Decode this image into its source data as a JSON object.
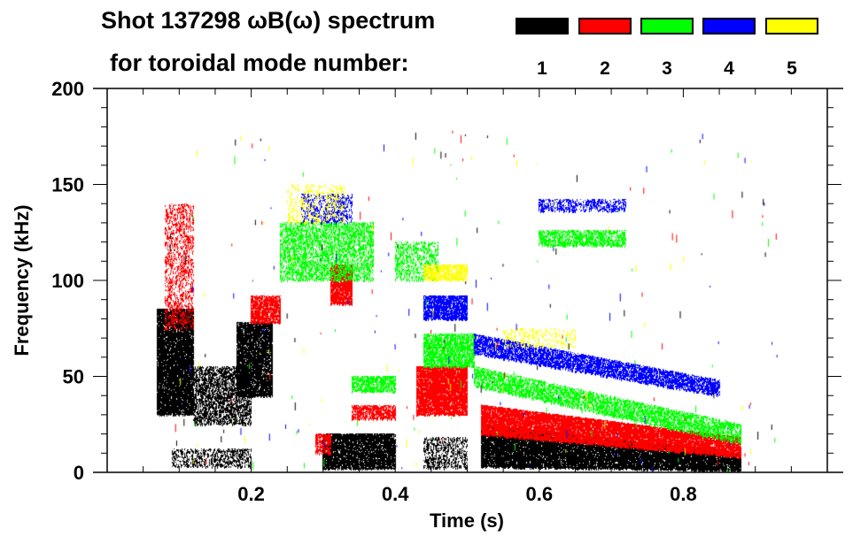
{
  "header": {
    "title_line1": "Shot 137298 ωB(ω) spectrum",
    "title_line2": "for toroidal mode number:"
  },
  "legend": [
    {
      "label": "1",
      "color": "#000000"
    },
    {
      "label": "2",
      "color": "#ff0000"
    },
    {
      "label": "3",
      "color": "#00ff00"
    },
    {
      "label": "4",
      "color": "#0000ff"
    },
    {
      "label": "5",
      "color": "#ffff00"
    }
  ],
  "chart_data": {
    "type": "heatmap",
    "title": "Shot 137298 ωB(ω) spectrum for toroidal mode number:",
    "xlabel": "Time (s)",
    "ylabel": "Frequency (kHz)",
    "xlim": [
      0.0,
      1.0
    ],
    "ylim": [
      0,
      200
    ],
    "xticks": [
      0.2,
      0.4,
      0.6,
      0.8
    ],
    "xtick_labels": [
      "0.2",
      "0.4",
      "0.6",
      "0.8"
    ],
    "yticks": [
      0,
      50,
      100,
      150,
      200
    ],
    "ytick_labels": [
      "0",
      "50",
      "100",
      "150",
      "200"
    ],
    "grid": false,
    "legend_position": "top-right",
    "features": [
      {
        "mode": 1,
        "t": [
          0.07,
          0.12
        ],
        "f": [
          30,
          85
        ],
        "density": 0.85
      },
      {
        "mode": 1,
        "t": [
          0.12,
          0.2
        ],
        "f": [
          25,
          55
        ],
        "density": 0.45
      },
      {
        "mode": 1,
        "t": [
          0.18,
          0.23
        ],
        "f": [
          40,
          78
        ],
        "density": 0.8
      },
      {
        "mode": 1,
        "t": [
          0.09,
          0.2
        ],
        "f": [
          3,
          12
        ],
        "density": 0.3
      },
      {
        "mode": 1,
        "t": [
          0.3,
          0.4
        ],
        "f": [
          2,
          20
        ],
        "density": 0.8
      },
      {
        "mode": 1,
        "t": [
          0.52,
          0.88
        ],
        "f": [
          3,
          25
        ],
        "f_end": [
          1,
          10
        ],
        "density": 0.85
      },
      {
        "mode": 1,
        "t": [
          0.44,
          0.5
        ],
        "f": [
          2,
          18
        ],
        "density": 0.3
      },
      {
        "mode": 2,
        "t": [
          0.08,
          0.12
        ],
        "f": [
          75,
          140
        ],
        "density": 0.25
      },
      {
        "mode": 2,
        "t": [
          0.2,
          0.24
        ],
        "f": [
          78,
          92
        ],
        "density": 0.7
      },
      {
        "mode": 2,
        "t": [
          0.31,
          0.34
        ],
        "f": [
          88,
          108
        ],
        "density": 0.8
      },
      {
        "mode": 2,
        "t": [
          0.43,
          0.5
        ],
        "f": [
          30,
          55
        ],
        "density": 0.85
      },
      {
        "mode": 2,
        "t": [
          0.34,
          0.4
        ],
        "f": [
          28,
          35
        ],
        "density": 0.6
      },
      {
        "mode": 2,
        "t": [
          0.52,
          0.88
        ],
        "f": [
          20,
          35
        ],
        "f_end": [
          8,
          18
        ],
        "density": 0.85
      },
      {
        "mode": 2,
        "t": [
          0.29,
          0.31
        ],
        "f": [
          10,
          20
        ],
        "density": 0.6
      },
      {
        "mode": 3,
        "t": [
          0.24,
          0.37
        ],
        "f": [
          100,
          130
        ],
        "density": 0.4
      },
      {
        "mode": 3,
        "t": [
          0.34,
          0.4
        ],
        "f": [
          42,
          50
        ],
        "density": 0.6
      },
      {
        "mode": 3,
        "t": [
          0.44,
          0.51
        ],
        "f": [
          55,
          72
        ],
        "density": 0.6
      },
      {
        "mode": 3,
        "t": [
          0.51,
          0.88
        ],
        "f": [
          45,
          55
        ],
        "f_end": [
          15,
          25
        ],
        "density": 0.5
      },
      {
        "mode": 3,
        "t": [
          0.6,
          0.72
        ],
        "f": [
          118,
          126
        ],
        "density": 0.5
      },
      {
        "mode": 3,
        "t": [
          0.4,
          0.46
        ],
        "f": [
          100,
          120
        ],
        "density": 0.3
      },
      {
        "mode": 4,
        "t": [
          0.44,
          0.5
        ],
        "f": [
          80,
          92
        ],
        "density": 0.7
      },
      {
        "mode": 4,
        "t": [
          0.51,
          0.85
        ],
        "f": [
          62,
          72
        ],
        "f_end": [
          40,
          48
        ],
        "density": 0.6
      },
      {
        "mode": 4,
        "t": [
          0.27,
          0.34
        ],
        "f": [
          130,
          145
        ],
        "density": 0.25
      },
      {
        "mode": 4,
        "t": [
          0.6,
          0.72
        ],
        "f": [
          136,
          142
        ],
        "density": 0.35
      },
      {
        "mode": 5,
        "t": [
          0.44,
          0.5
        ],
        "f": [
          100,
          108
        ],
        "density": 0.6
      },
      {
        "mode": 5,
        "t": [
          0.25,
          0.33
        ],
        "f": [
          130,
          150
        ],
        "density": 0.15
      },
      {
        "mode": 5,
        "t": [
          0.55,
          0.65
        ],
        "f": [
          65,
          75
        ],
        "density": 0.15
      }
    ]
  }
}
